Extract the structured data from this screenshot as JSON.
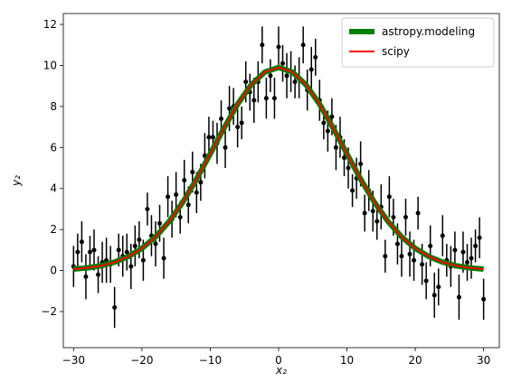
{
  "chart_data": {
    "type": "scatter",
    "xlabel": "x₂",
    "ylabel": "y₂",
    "xlim": [
      -31.5,
      32.3
    ],
    "ylim": [
      -3.76,
      12.53
    ],
    "xticks": [
      {
        "value": -30,
        "label": "−30"
      },
      {
        "value": -20,
        "label": "−20"
      },
      {
        "value": -10,
        "label": "−10"
      },
      0,
      10,
      20,
      30
    ],
    "yticks": [
      {
        "value": -2,
        "label": "−2"
      },
      0,
      2,
      4,
      6,
      8,
      10,
      12
    ],
    "legend": "upper right",
    "series": [
      {
        "type": "errorbar",
        "color": "#000000",
        "x": [
          -30,
          -29.4,
          -28.8,
          -28.2,
          -27.6,
          -27,
          -26.4,
          -25.8,
          -25.2,
          -24.6,
          -24,
          -23.4,
          -22.8,
          -22.2,
          -21.6,
          -21,
          -20.4,
          -19.8,
          -19.2,
          -18.6,
          -18,
          -17.4,
          -16.8,
          -16.2,
          -15.6,
          -15,
          -14.4,
          -13.8,
          -13.2,
          -12.6,
          -12,
          -11.4,
          -10.8,
          -10.2,
          -9.6,
          -9,
          -8.4,
          -7.8,
          -7.2,
          -6.6,
          -6,
          -5.4,
          -4.8,
          -4.2,
          -3.6,
          -3,
          -2.4,
          -1.8,
          -1.2,
          -0.6,
          0,
          0.6,
          1.2,
          1.8,
          2.4,
          3,
          3.6,
          4.2,
          4.8,
          5.4,
          6,
          6.6,
          7.2,
          7.8,
          8.4,
          9,
          9.6,
          10.2,
          10.8,
          11.4,
          12,
          12.6,
          13.2,
          13.8,
          14.4,
          15,
          15.6,
          16.2,
          16.8,
          17.4,
          18,
          18.6,
          19.2,
          19.8,
          20.4,
          21,
          21.6,
          22.2,
          22.8,
          23.4,
          24,
          24.6,
          25.2,
          25.8,
          26.4,
          27,
          27.6,
          28.2,
          28.8,
          29.4,
          30
        ],
        "values": [
          0.2,
          0.9,
          1.4,
          -0.3,
          0.9,
          1.0,
          -0.2,
          0.4,
          0.5,
          0.3,
          -1.8,
          1.0,
          0.7,
          0.9,
          0.2,
          1.2,
          1.5,
          0.5,
          3.0,
          1.7,
          1.3,
          2.3,
          0.6,
          3.6,
          2.5,
          3.7,
          2.6,
          4.4,
          3.2,
          4.8,
          3.8,
          4.3,
          5.6,
          6.5,
          6.5,
          6.2,
          7.4,
          6.0,
          7.9,
          8.0,
          7.0,
          7.2,
          9.2,
          8.7,
          8.3,
          9.2,
          11.0,
          8.4,
          9.5,
          8.4,
          10.9,
          10.1,
          9.5,
          9.7,
          9.2,
          9.4,
          11.0,
          8.8,
          9.8,
          10.4,
          8.3,
          7.2,
          6.8,
          7.5,
          6.0,
          6.5,
          5.5,
          5.0,
          3.9,
          4.5,
          5.2,
          2.8,
          3.9,
          2.9,
          2.4,
          3.1,
          0.7,
          3.6,
          2.6,
          1.3,
          0.7,
          2.6,
          0.8,
          0.5,
          2.8,
          0.3,
          -0.5,
          1.2,
          -1.2,
          -0.8,
          1.7,
          0.5,
          0.2,
          1.0,
          -1.3,
          0.9,
          0.4,
          0.6,
          1.2,
          1.6,
          -1.4
        ],
        "errors": [
          1.0,
          0.9,
          1.0,
          1.1,
          0.8,
          1.0,
          0.9,
          1.0,
          1.1,
          0.9,
          1.0,
          0.8,
          1.0,
          0.9,
          1.1,
          1.0,
          0.9,
          1.0,
          0.8,
          1.0,
          1.1,
          0.9,
          1.0,
          1.0,
          0.9,
          1.1,
          0.8,
          1.0,
          0.9,
          1.0,
          1.0,
          0.9,
          1.1,
          1.0,
          0.8,
          1.0,
          0.9,
          1.0,
          1.1,
          0.9,
          1.0,
          0.8,
          1.0,
          0.9,
          1.1,
          1.0,
          0.9,
          1.0,
          0.8,
          1.0,
          1.0,
          0.9,
          1.1,
          1.0,
          0.8,
          1.0,
          0.9,
          1.0,
          1.1,
          0.9,
          1.0,
          0.8,
          1.0,
          0.9,
          1.1,
          1.0,
          0.9,
          1.0,
          0.8,
          1.0,
          1.1,
          0.9,
          1.0,
          1.0,
          0.9,
          1.1,
          0.8,
          1.0,
          0.9,
          1.0,
          1.0,
          0.9,
          1.1,
          1.0,
          0.8,
          1.0,
          0.9,
          1.0,
          1.1,
          0.9,
          1.0,
          0.8,
          1.0,
          0.9,
          1.1,
          1.0,
          0.9,
          1.0,
          0.8,
          1.0,
          1.0
        ]
      },
      {
        "type": "line",
        "name": "astropy.modeling",
        "color": "#008000",
        "x": [
          -30,
          -28,
          -26,
          -24,
          -22,
          -20,
          -18,
          -16,
          -14,
          -12,
          -10,
          -8,
          -6,
          -4,
          -2,
          0,
          2,
          4,
          6,
          8,
          10,
          12,
          14,
          16,
          18,
          20,
          22,
          24,
          26,
          28,
          30
        ],
        "values": [
          0.07,
          0.13,
          0.23,
          0.41,
          0.68,
          1.08,
          1.64,
          2.4,
          3.34,
          4.46,
          5.69,
          6.94,
          8.11,
          9.06,
          9.68,
          9.9,
          9.68,
          9.06,
          8.11,
          6.94,
          5.69,
          4.46,
          3.34,
          2.4,
          1.64,
          1.08,
          0.68,
          0.41,
          0.23,
          0.13,
          0.07
        ]
      },
      {
        "type": "line",
        "name": "scipy",
        "color": "#ff0000",
        "x": [
          -30,
          -28,
          -26,
          -24,
          -22,
          -20,
          -18,
          -16,
          -14,
          -12,
          -10,
          -8,
          -6,
          -4,
          -2,
          0,
          2,
          4,
          6,
          8,
          10,
          12,
          14,
          16,
          18,
          20,
          22,
          24,
          26,
          28,
          30
        ],
        "values": [
          0.07,
          0.13,
          0.23,
          0.41,
          0.68,
          1.08,
          1.64,
          2.4,
          3.34,
          4.46,
          5.69,
          6.94,
          8.11,
          9.06,
          9.68,
          9.9,
          9.68,
          9.06,
          8.11,
          6.94,
          5.69,
          4.46,
          3.34,
          2.4,
          1.64,
          1.08,
          0.68,
          0.41,
          0.23,
          0.13,
          0.07
        ]
      }
    ]
  }
}
